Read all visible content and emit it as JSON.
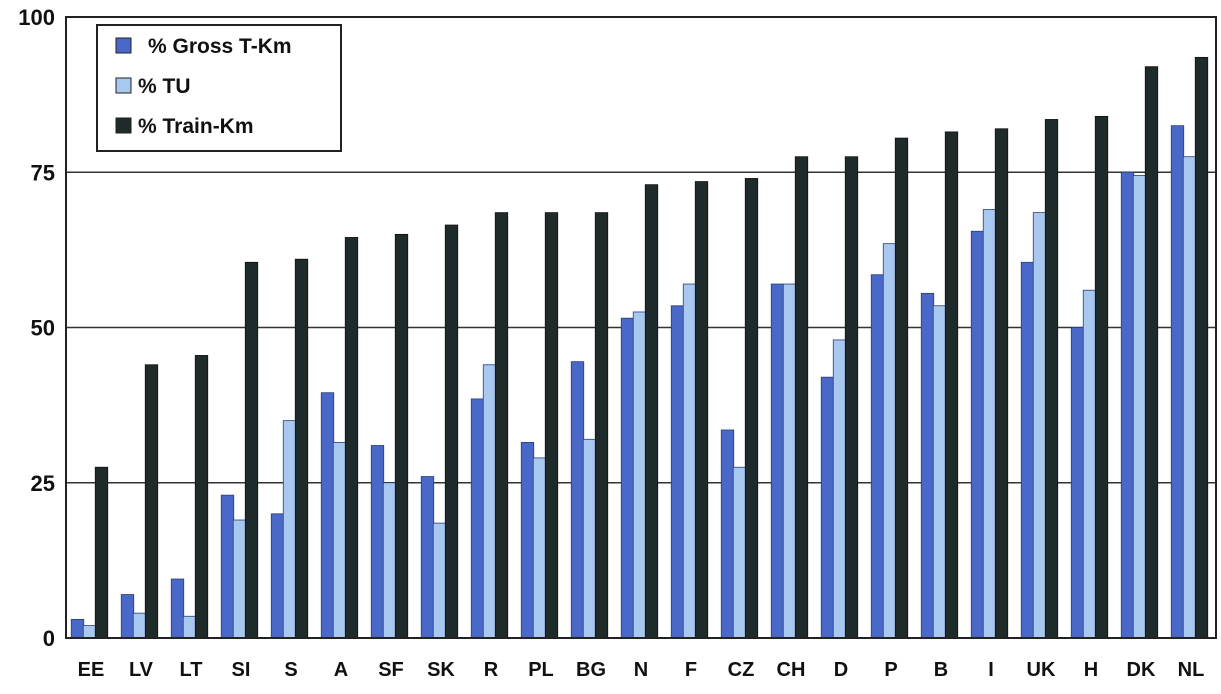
{
  "chart_data": {
    "type": "bar",
    "categories": [
      "EE",
      "LV",
      "LT",
      "SI",
      "S",
      "A",
      "SF",
      "SK",
      "R",
      "PL",
      "BG",
      "N",
      "F",
      "CZ",
      "CH",
      "D",
      "P",
      "B",
      "I",
      "UK",
      "H",
      "DK",
      "NL"
    ],
    "series": [
      {
        "name": "% Gross T-Km",
        "color": "#4a68c8",
        "values": [
          3,
          7,
          9.5,
          23,
          20,
          39.5,
          31,
          26,
          38.5,
          31.5,
          44.5,
          51.5,
          53.5,
          33.5,
          57,
          42,
          58.5,
          55.5,
          65.5,
          60.5,
          50,
          75,
          82.5
        ]
      },
      {
        "name": "% TU",
        "color": "#a8c8f0",
        "values": [
          2,
          4,
          3.5,
          19,
          35,
          31.5,
          25,
          18.5,
          44,
          29,
          32,
          52.5,
          57,
          27.5,
          57,
          48,
          63.5,
          53.5,
          69,
          68.5,
          56,
          74.5,
          77.5
        ]
      },
      {
        "name": "% Train-Km",
        "color": "#1f2a2a",
        "values": [
          27.5,
          44,
          45.5,
          60.5,
          61,
          64.5,
          65,
          66.5,
          68.5,
          68.5,
          68.5,
          73,
          73.5,
          74,
          77.5,
          77.5,
          80.5,
          81.5,
          82,
          83.5,
          84,
          92,
          93.5
        ]
      }
    ],
    "yticks": [
      0,
      25,
      50,
      75,
      100
    ],
    "ylim": [
      0,
      100
    ],
    "grid": true,
    "legend_position": "top-left"
  }
}
